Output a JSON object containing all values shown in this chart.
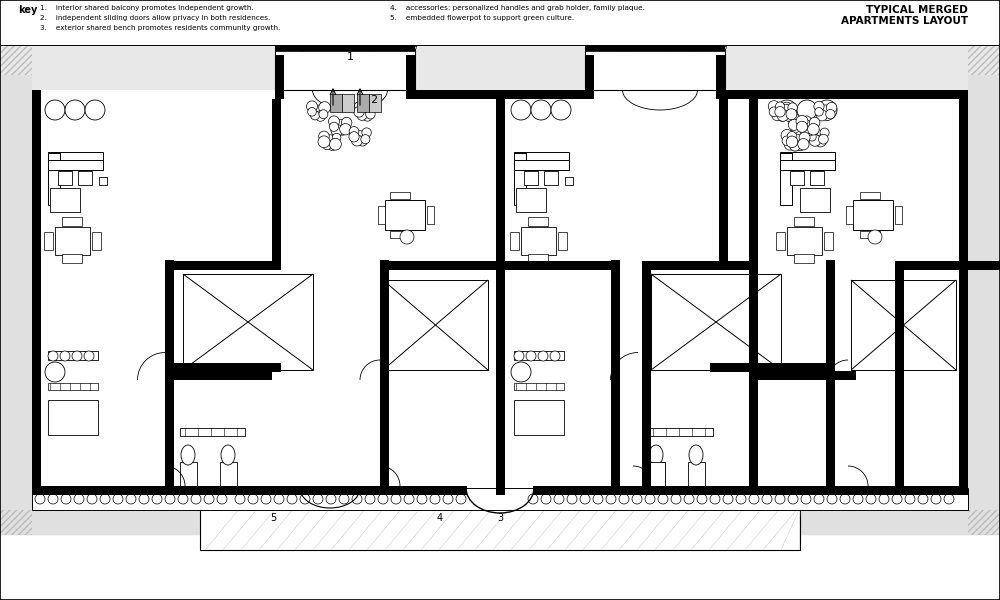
{
  "title": "TYPICAL MERGED\nAPARTMENTS LAYOUT",
  "key_label": "key",
  "key_items_left": [
    "1.    interior shared balcony promotes independent growth.",
    "2.    independent sliding doors allow privacy in both residences.",
    "3.    exterior shared bench promotes residents community growth."
  ],
  "key_items_right": [
    "4.    accessories: personalized handles and grab holder, family plaque.",
    "5.    embedded flowerpot to support green culture."
  ],
  "bg_color": "#ffffff",
  "wall_color": "#000000",
  "light_gray": "#cccccc",
  "hatch_gray": "#d8d8d8"
}
